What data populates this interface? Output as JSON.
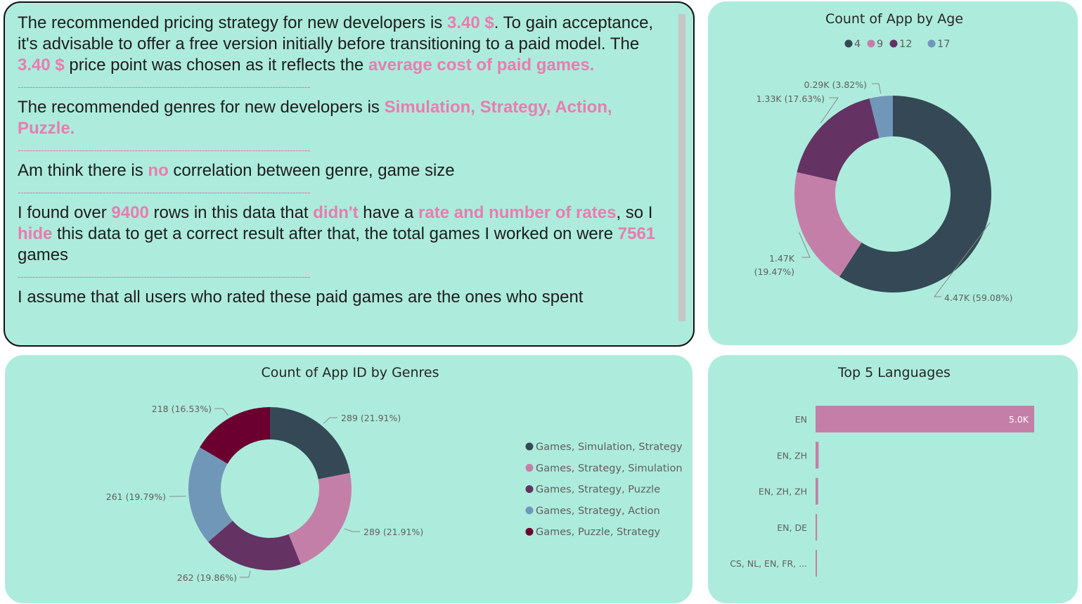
{
  "notes": {
    "p1": [
      {
        "t": "The recommended pricing strategy for new developers is "
      },
      {
        "t": "3.40 $",
        "h": true
      },
      {
        "t": ". To gain acceptance, it's advisable to offer a free version initially before transitioning to a paid model. The "
      },
      {
        "t": "3.40 $",
        "h": true
      },
      {
        "t": " price point was chosen as it reflects the "
      },
      {
        "t": "average cost of paid games.",
        "h": true
      }
    ],
    "p2": [
      {
        "t": "The recommended genres for new developers is "
      },
      {
        "t": "Simulation, Strategy, Action, Puzzle.",
        "h": true
      }
    ],
    "p3": [
      {
        "t": "Am think there is "
      },
      {
        "t": "no",
        "h": true
      },
      {
        "t": " correlation between genre, game size"
      }
    ],
    "p4": [
      {
        "t": "I found over "
      },
      {
        "t": "9400",
        "h": true
      },
      {
        "t": " rows in this data that "
      },
      {
        "t": "didn't",
        "h": true
      },
      {
        "t": " have a "
      },
      {
        "t": "rate and number of rates",
        "h": true
      },
      {
        "t": ", so I "
      },
      {
        "t": "hide",
        "h": true
      },
      {
        "t": " this data to get a correct result after that, the total games I worked on were "
      },
      {
        "t": "7561",
        "h": true
      },
      {
        "t": " games"
      }
    ],
    "p5": [
      {
        "t": "I assume that all users who rated these paid games are the ones who spent"
      }
    ],
    "separator": "----------------------------------------------------------------------------------------------------"
  },
  "colors": {
    "dark": "#344955",
    "pink": "#c47fa8",
    "purple": "#643263",
    "blue": "#7097b8",
    "maroon": "#6b0030",
    "card": "#adecdc",
    "highlight": "#e97cb0"
  },
  "chart_data": [
    {
      "type": "pie",
      "variant": "donut",
      "title": "Count of App by Age",
      "legend_placement": "top",
      "series": [
        {
          "name": "4",
          "value": 4470,
          "label": "4.47K (59.08%)",
          "color": "#344955"
        },
        {
          "name": "9",
          "value": 1470,
          "label": "1.47K (19.47%)",
          "color": "#c47fa8"
        },
        {
          "name": "12",
          "value": 1330,
          "label": "1.33K (17.63%)",
          "color": "#643263"
        },
        {
          "name": "17",
          "value": 290,
          "label": "0.29K (3.82%)",
          "color": "#7097b8"
        }
      ]
    },
    {
      "type": "pie",
      "variant": "donut",
      "title": "Count of App ID by Genres",
      "legend_placement": "right",
      "series": [
        {
          "name": "Games, Simulation, Strategy",
          "value": 289,
          "label": "289 (21.91%)",
          "color": "#344955"
        },
        {
          "name": "Games, Strategy, Simulation",
          "value": 289,
          "label": "289 (21.91%)",
          "color": "#c47fa8"
        },
        {
          "name": "Games, Strategy, Puzzle",
          "value": 262,
          "label": "262 (19.86%)",
          "color": "#643263"
        },
        {
          "name": "Games, Strategy, Action",
          "value": 261,
          "label": "261 (19.79%)",
          "color": "#7097b8"
        },
        {
          "name": "Games, Puzzle, Strategy",
          "value": 218,
          "label": "218 (16.53%)",
          "color": "#6b0030"
        }
      ]
    },
    {
      "type": "bar",
      "orientation": "horizontal",
      "title": "Top 5 Languages",
      "categories": [
        "EN",
        "EN, ZH",
        "EN, ZH, ZH",
        "EN, DE",
        "CS, NL, EN, FR, ..."
      ],
      "values": [
        5000,
        70,
        60,
        35,
        30
      ],
      "data_labels": [
        "5.0K",
        "",
        "",
        "",
        ""
      ],
      "xlim": [
        0,
        5000
      ],
      "color": "#c47fa8"
    }
  ]
}
